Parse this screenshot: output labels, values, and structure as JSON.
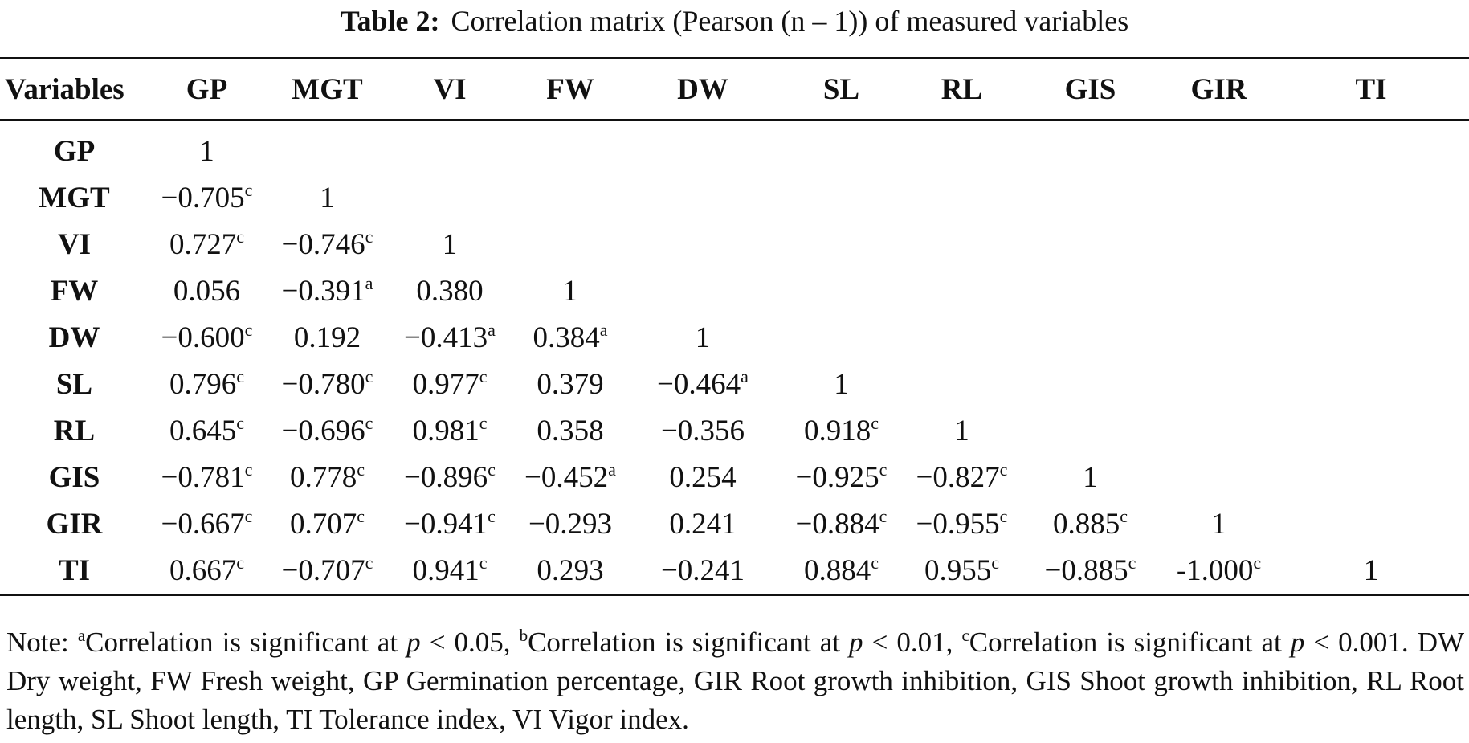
{
  "caption": {
    "label": "Table 2:",
    "text": "Correlation matrix (Pearson (n – 1)) of measured variables"
  },
  "table": {
    "corner_label": "Variables",
    "columns": [
      "GP",
      "MGT",
      "VI",
      "FW",
      "DW",
      "SL",
      "RL",
      "GIS",
      "GIR",
      "TI"
    ],
    "rows": [
      {
        "label": "GP",
        "cells": [
          {
            "v": "1",
            "s": ""
          }
        ]
      },
      {
        "label": "MGT",
        "cells": [
          {
            "v": "−0.705",
            "s": "c"
          },
          {
            "v": "1",
            "s": ""
          }
        ]
      },
      {
        "label": "VI",
        "cells": [
          {
            "v": "0.727",
            "s": "c"
          },
          {
            "v": "−0.746",
            "s": "c"
          },
          {
            "v": "1",
            "s": ""
          }
        ]
      },
      {
        "label": "FW",
        "cells": [
          {
            "v": "0.056",
            "s": ""
          },
          {
            "v": "−0.391",
            "s": "a"
          },
          {
            "v": "0.380",
            "s": ""
          },
          {
            "v": "1",
            "s": ""
          }
        ]
      },
      {
        "label": "DW",
        "cells": [
          {
            "v": "−0.600",
            "s": "c"
          },
          {
            "v": "0.192",
            "s": ""
          },
          {
            "v": "−0.413",
            "s": "a"
          },
          {
            "v": "0.384",
            "s": "a"
          },
          {
            "v": "1",
            "s": ""
          }
        ]
      },
      {
        "label": "SL",
        "cells": [
          {
            "v": "0.796",
            "s": "c"
          },
          {
            "v": "−0.780",
            "s": "c"
          },
          {
            "v": "0.977",
            "s": "c"
          },
          {
            "v": "0.379",
            "s": ""
          },
          {
            "v": "−0.464",
            "s": "a"
          },
          {
            "v": "1",
            "s": ""
          }
        ]
      },
      {
        "label": "RL",
        "cells": [
          {
            "v": "0.645",
            "s": "c"
          },
          {
            "v": "−0.696",
            "s": "c"
          },
          {
            "v": "0.981",
            "s": "c"
          },
          {
            "v": "0.358",
            "s": ""
          },
          {
            "v": "−0.356",
            "s": ""
          },
          {
            "v": "0.918",
            "s": "c"
          },
          {
            "v": "1",
            "s": ""
          }
        ]
      },
      {
        "label": "GIS",
        "cells": [
          {
            "v": "−0.781",
            "s": "c"
          },
          {
            "v": "0.778",
            "s": "c"
          },
          {
            "v": "−0.896",
            "s": "c"
          },
          {
            "v": "−0.452",
            "s": "a"
          },
          {
            "v": "0.254",
            "s": ""
          },
          {
            "v": "−0.925",
            "s": "c"
          },
          {
            "v": "−0.827",
            "s": "c"
          },
          {
            "v": "1",
            "s": ""
          }
        ]
      },
      {
        "label": "GIR",
        "cells": [
          {
            "v": "−0.667",
            "s": "c"
          },
          {
            "v": "0.707",
            "s": "c"
          },
          {
            "v": "−0.941",
            "s": "c"
          },
          {
            "v": "−0.293",
            "s": ""
          },
          {
            "v": "0.241",
            "s": ""
          },
          {
            "v": "−0.884",
            "s": "c"
          },
          {
            "v": "−0.955",
            "s": "c"
          },
          {
            "v": "0.885",
            "s": "c"
          },
          {
            "v": "1",
            "s": ""
          }
        ]
      },
      {
        "label": "TI",
        "cells": [
          {
            "v": "0.667",
            "s": "c"
          },
          {
            "v": "−0.707",
            "s": "c"
          },
          {
            "v": "0.941",
            "s": "c"
          },
          {
            "v": "0.293",
            "s": ""
          },
          {
            "v": "−0.241",
            "s": ""
          },
          {
            "v": "0.884",
            "s": "c"
          },
          {
            "v": "0.955",
            "s": "c"
          },
          {
            "v": "−0.885",
            "s": "c"
          },
          {
            "v": "-1.000",
            "s": "c"
          },
          {
            "v": "1",
            "s": ""
          }
        ]
      }
    ]
  },
  "note": {
    "prefix": "Note: ",
    "sig_a_mark": "a",
    "sig_a_text": "Correlation is significant at ",
    "sig_a_p": "p",
    "sig_a_val": " < 0.05, ",
    "sig_b_mark": "b",
    "sig_b_text": "Correlation is significant at ",
    "sig_b_p": "p",
    "sig_b_val": " < 0.01, ",
    "sig_c_mark": "c",
    "sig_c_text": "Correlation is significant at ",
    "sig_c_p": "p",
    "sig_c_val": " < 0.001. ",
    "abbreviations": "DW Dry weight, FW Fresh weight, GP Germination percentage, GIR Root growth inhibition, GIS Shoot growth inhibition, RL Root length, SL Shoot length, TI Tolerance index, VI Vigor index."
  }
}
